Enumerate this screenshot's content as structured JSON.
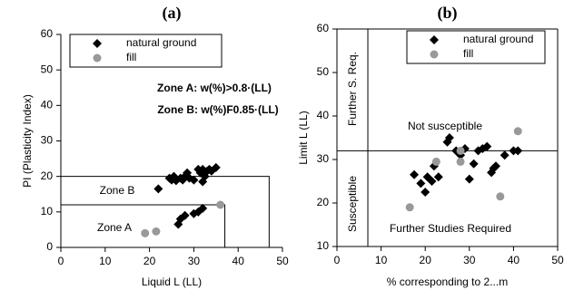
{
  "chart_data": [
    {
      "type": "scatter",
      "title": "(a)",
      "x_label": "Liquid L (LL)",
      "y_label": "PI (Plasticity Index)",
      "xlim": [
        0,
        50
      ],
      "xticks": [
        0,
        10,
        20,
        30,
        40,
        50
      ],
      "ylim": [
        0,
        60
      ],
      "yticks": [
        0,
        10,
        20,
        30,
        40,
        50,
        60
      ],
      "frame": false,
      "annotations": [
        "Zone A: w(%)>0.8·(LL)",
        "Zone B: w(%)F0.85·(LL)",
        "Zone B",
        "Zone A"
      ],
      "zone_lines": [
        {
          "y": 20,
          "x": 47
        },
        {
          "y": 12,
          "x": 37
        }
      ],
      "series": [
        {
          "name": "natural ground",
          "color": "#000000",
          "marker": "diamond",
          "x": [
            22,
            24.5,
            25,
            25.5,
            26,
            27,
            27.5,
            28,
            28.5,
            29,
            30,
            31,
            31.5,
            32,
            32,
            32.5,
            33,
            33.5,
            34,
            35,
            26.5,
            27,
            28,
            30,
            31,
            32
          ],
          "values": [
            16.5,
            19.5,
            19,
            20,
            18.8,
            19.5,
            19,
            20,
            21,
            19.5,
            19,
            22,
            21,
            22,
            18.5,
            20,
            21.5,
            22,
            21.5,
            22.5,
            6.5,
            8,
            9,
            9.5,
            10,
            11
          ]
        },
        {
          "name": "fill",
          "color": "#999999",
          "marker": "circle",
          "x": [
            19,
            21.5,
            36
          ],
          "values": [
            4,
            4.5,
            12
          ]
        }
      ]
    },
    {
      "type": "scatter",
      "title": "(b)",
      "x_label": "% corresponding to 2...m",
      "y_label": "Limit L (LL)",
      "xlim": [
        0,
        50
      ],
      "xticks": [
        0,
        10,
        20,
        30,
        40,
        50
      ],
      "ylim": [
        10,
        60
      ],
      "yticks": [
        10,
        20,
        30,
        40,
        50,
        60
      ],
      "frame": true,
      "annotations": [
        "Further S. Req.",
        "Not susceptible",
        "Susceptible",
        "Further Studies Required"
      ],
      "hline": 32,
      "vline": 7,
      "series": [
        {
          "name": "natural ground",
          "color": "#000000",
          "marker": "diamond",
          "x": [
            17.5,
            19,
            20,
            20.5,
            21.5,
            22,
            23,
            25,
            25.5,
            27,
            28,
            29,
            30,
            31,
            32,
            33,
            34,
            35,
            35.5,
            36,
            38,
            40,
            41
          ],
          "values": [
            26.5,
            24.5,
            22.5,
            26,
            25,
            28.5,
            26,
            34,
            35,
            32,
            31,
            32.5,
            25.5,
            29,
            32,
            32.5,
            33,
            27,
            28,
            28.5,
            31,
            32,
            32
          ]
        },
        {
          "name": "fill",
          "color": "#999999",
          "marker": "circle",
          "x": [
            16.5,
            22.5,
            28,
            28,
            37,
            41
          ],
          "values": [
            19,
            29.5,
            32,
            29.5,
            21.5,
            36.5
          ]
        }
      ]
    }
  ]
}
